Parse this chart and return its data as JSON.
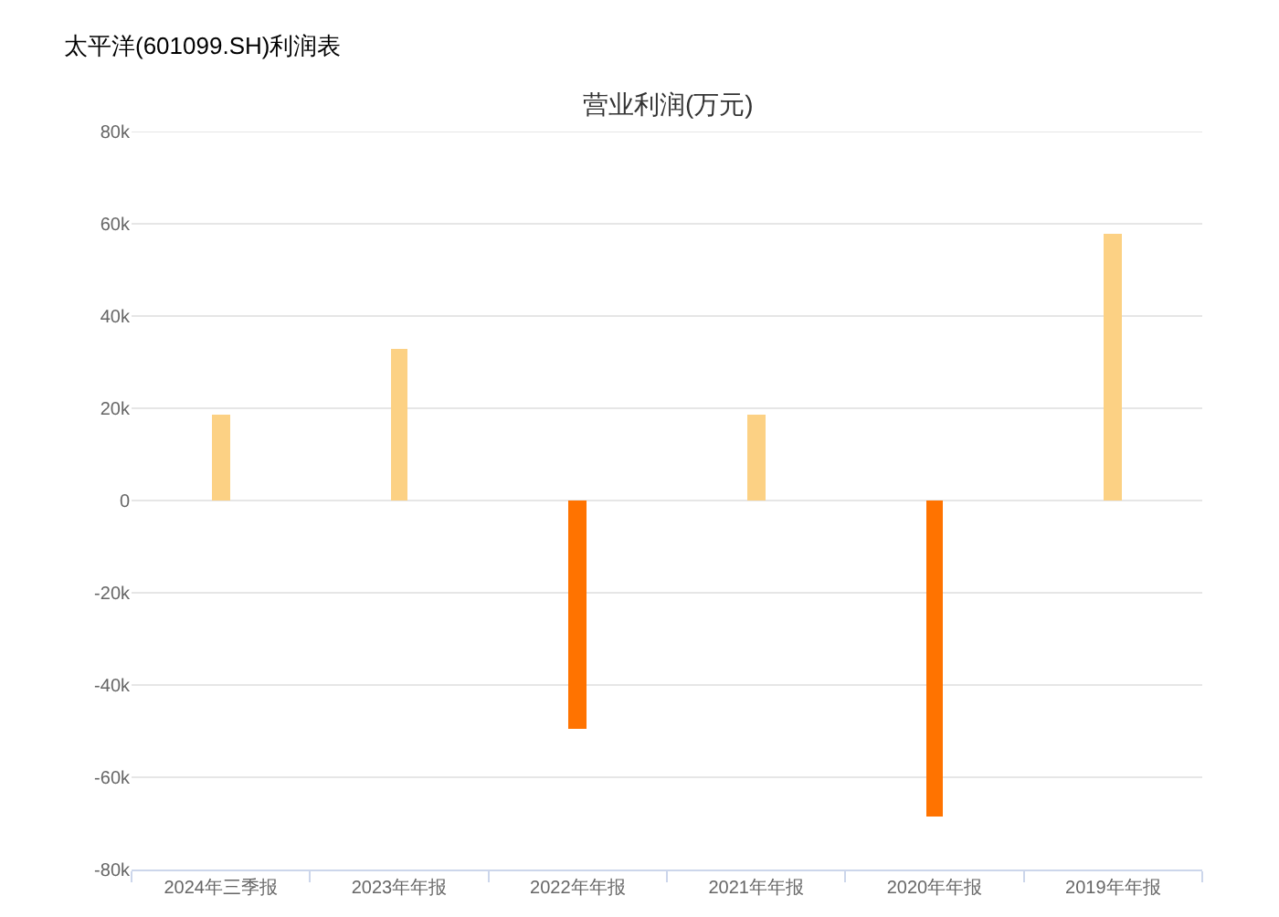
{
  "chart_data": {
    "type": "bar",
    "title": "太平洋(601099.SH)利润表",
    "subtitle": "营业利润(万元)",
    "categories": [
      "2024年三季报",
      "2023年年报",
      "2022年年报",
      "2021年年报",
      "2020年年报",
      "2019年年报"
    ],
    "values": [
      18500,
      33000,
      -49500,
      18500,
      -68500,
      58000
    ],
    "colors": [
      "#fcd184",
      "#fcd184",
      "#ff7300",
      "#fcd184",
      "#ff7300",
      "#fcd184"
    ],
    "ylim": [
      -80000,
      80000
    ],
    "yticks": [
      {
        "value": -80000,
        "label": "-80k"
      },
      {
        "value": -60000,
        "label": "-60k"
      },
      {
        "value": -40000,
        "label": "-40k"
      },
      {
        "value": -20000,
        "label": "-20k"
      },
      0,
      {
        "value": 20000,
        "label": "20k"
      },
      {
        "value": 40000,
        "label": "40k"
      },
      {
        "value": 60000,
        "label": "60k"
      },
      {
        "value": 80000,
        "label": "80k"
      }
    ],
    "grid": "y"
  }
}
